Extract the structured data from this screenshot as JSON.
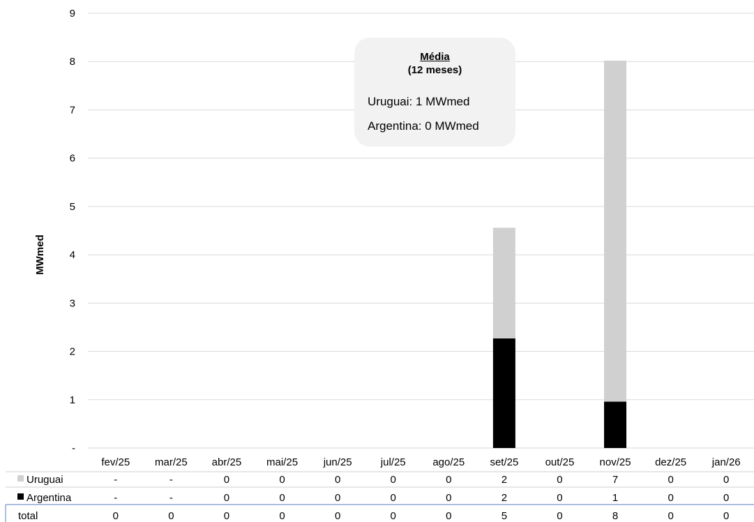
{
  "chart_data": {
    "type": "bar",
    "stacked": true,
    "ylabel": "MWmed",
    "ylim": [
      0,
      9
    ],
    "yticks": [
      "-",
      "1",
      "2",
      "3",
      "4",
      "5",
      "6",
      "7",
      "8",
      "9"
    ],
    "grid": true,
    "categories": [
      "fev/25",
      "mar/25",
      "abr/25",
      "mai/25",
      "jun/25",
      "jul/25",
      "ago/25",
      "set/25",
      "out/25",
      "nov/25",
      "dez/25",
      "jan/26"
    ],
    "series": [
      {
        "name": "Argentina",
        "color": "#000000",
        "values": [
          0,
          0,
          0,
          0,
          0,
          0,
          0,
          2.27,
          0,
          0.96,
          0,
          0
        ]
      },
      {
        "name": "Uruguai",
        "color": "#d0d0d0",
        "values": [
          0,
          0,
          0,
          0,
          0,
          0,
          0,
          2.29,
          0,
          7.06,
          0,
          0
        ]
      }
    ],
    "table": {
      "rows": [
        {
          "label": "Uruguai",
          "color": "#d0d0d0",
          "cells": [
            "-",
            "-",
            "0",
            "0",
            "0",
            "0",
            "0",
            "2",
            "0",
            "7",
            "0",
            "0"
          ]
        },
        {
          "label": "Argentina",
          "color": "#000000",
          "cells": [
            "-",
            "-",
            "0",
            "0",
            "0",
            "0",
            "0",
            "2",
            "0",
            "1",
            "0",
            "0"
          ]
        },
        {
          "label": "total",
          "color": "",
          "cells": [
            "0",
            "0",
            "0",
            "0",
            "0",
            "0",
            "0",
            "5",
            "0",
            "8",
            "0",
            "0"
          ]
        }
      ]
    },
    "annotation": {
      "title": "Média",
      "subtitle": "(12 meses)",
      "lines": [
        "Uruguai: 1 MWmed",
        "Argentina: 0 MWmed"
      ]
    }
  }
}
